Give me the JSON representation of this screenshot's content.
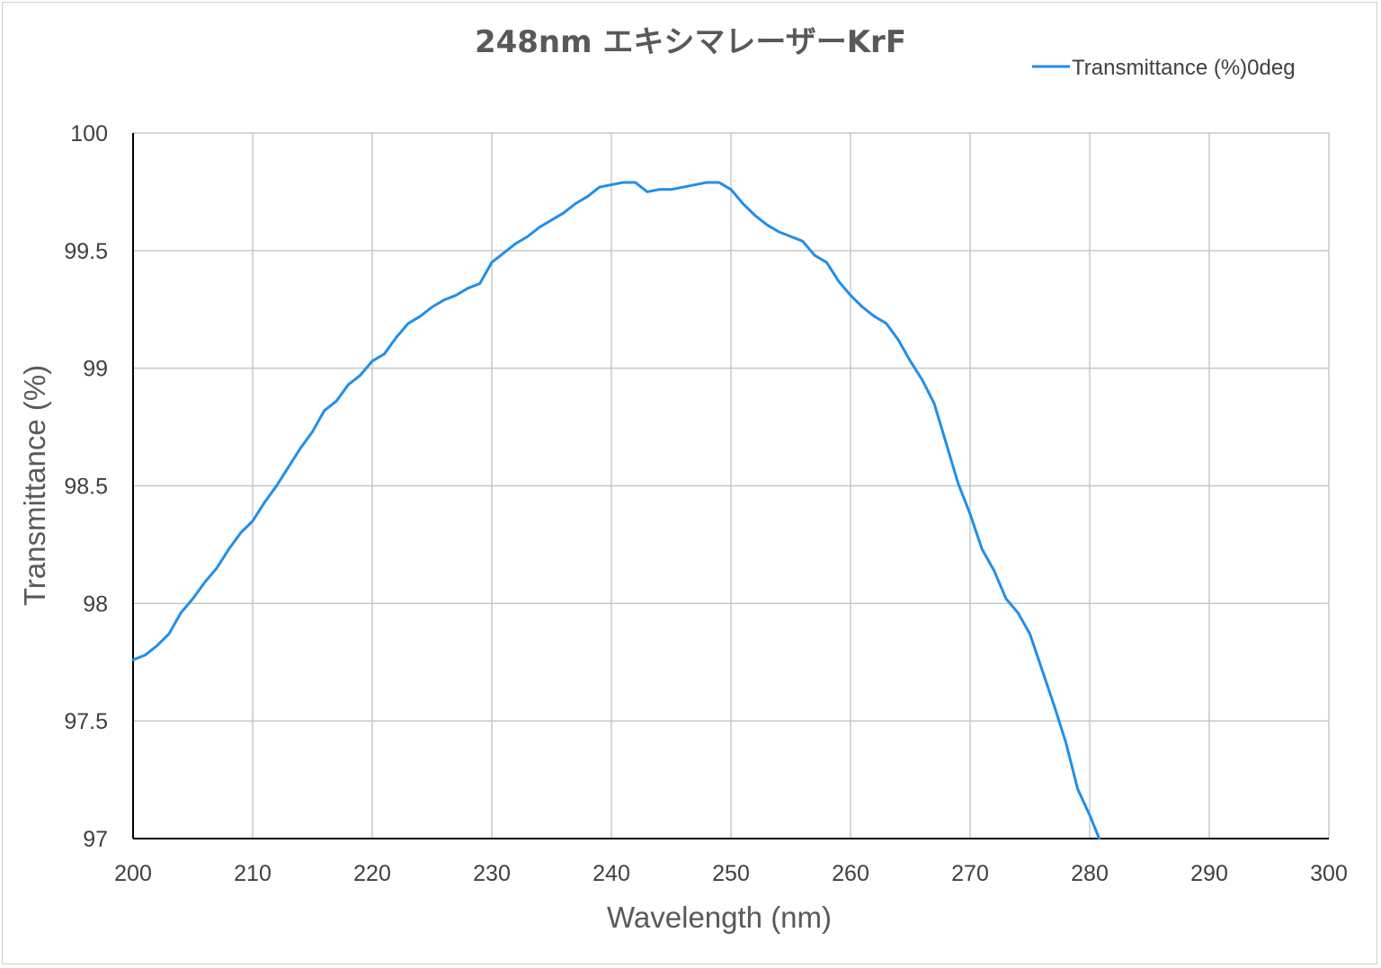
{
  "chart_data": {
    "type": "line",
    "title": "248nm エキシマレーザーKrF",
    "xlabel": "Wavelength (nm)",
    "ylabel": "Transmittance (%)",
    "xlim": [
      200,
      300
    ],
    "ylim": [
      97,
      100
    ],
    "x_ticks": [
      "200",
      "210",
      "220",
      "230",
      "240",
      "250",
      "260",
      "270",
      "280",
      "290",
      "300"
    ],
    "y_ticks": [
      "97",
      "97.5",
      "98",
      "98.5",
      "99",
      "99.5",
      "100"
    ],
    "grid": true,
    "legend_position": "top-right",
    "series": [
      {
        "name": "Transmittance (%)0deg",
        "color": "#1f8fea",
        "x": [
          200,
          201,
          202,
          203,
          204,
          205,
          206,
          207,
          208,
          209,
          210,
          211,
          212,
          213,
          214,
          215,
          216,
          217,
          218,
          219,
          220,
          221,
          222,
          223,
          224,
          225,
          226,
          227,
          228,
          229,
          230,
          231,
          232,
          233,
          234,
          235,
          236,
          237,
          238,
          239,
          240,
          241,
          242,
          243,
          244,
          245,
          246,
          247,
          248,
          249,
          250,
          251,
          252,
          253,
          254,
          255,
          256,
          257,
          258,
          259,
          260,
          261,
          262,
          263,
          264,
          265,
          266,
          267,
          268,
          269,
          270,
          271,
          272,
          273,
          274,
          275,
          276,
          277,
          278,
          279,
          280,
          280.8
        ],
        "y": [
          97.76,
          97.78,
          97.82,
          97.87,
          97.96,
          98.02,
          98.09,
          98.15,
          98.23,
          98.3,
          98.35,
          98.43,
          98.5,
          98.58,
          98.66,
          98.73,
          98.82,
          98.86,
          98.93,
          98.97,
          99.03,
          99.06,
          99.13,
          99.19,
          99.22,
          99.26,
          99.29,
          99.31,
          99.34,
          99.36,
          99.45,
          99.49,
          99.53,
          99.56,
          99.6,
          99.63,
          99.66,
          99.7,
          99.73,
          99.77,
          99.78,
          99.79,
          99.79,
          99.75,
          99.76,
          99.76,
          99.77,
          99.78,
          99.79,
          99.79,
          99.76,
          99.7,
          99.65,
          99.61,
          99.58,
          99.56,
          99.54,
          99.48,
          99.45,
          99.37,
          99.31,
          99.26,
          99.22,
          99.19,
          99.12,
          99.03,
          98.95,
          98.85,
          98.68,
          98.51,
          98.38,
          98.23,
          98.14,
          98.02,
          97.96,
          97.87,
          97.72,
          97.57,
          97.41,
          97.21,
          97.1,
          97.0
        ]
      }
    ]
  }
}
